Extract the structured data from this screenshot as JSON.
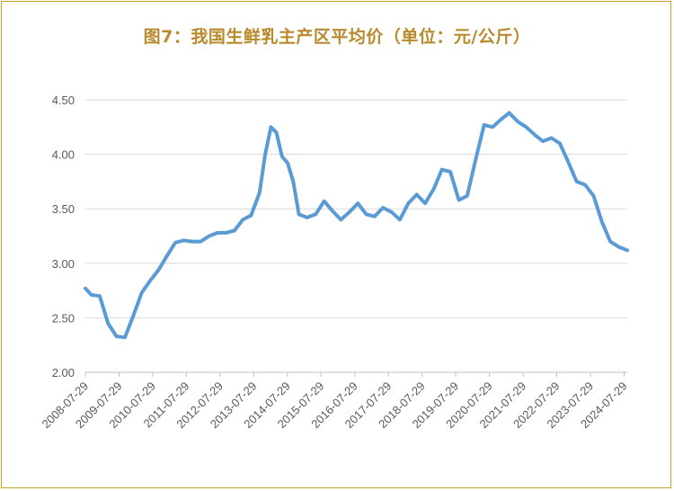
{
  "chart_data": {
    "type": "line",
    "title": "图7：我国生鲜乳主产区平均价（单位：元/公斤）",
    "xlabel": "",
    "ylabel": "",
    "ylim": [
      2.0,
      4.5
    ],
    "yticks": [
      "2.00",
      "2.50",
      "3.00",
      "3.50",
      "4.00",
      "4.50"
    ],
    "xticks": [
      "2008-07-29",
      "2009-07-29",
      "2010-07-29",
      "2011-07-29",
      "2012-07-29",
      "2013-07-29",
      "2014-07-29",
      "2015-07-29",
      "2016-07-29",
      "2017-07-29",
      "2018-07-29",
      "2019-07-29",
      "2020-07-29",
      "2021-07-29",
      "2022-07-29",
      "2023-07-29",
      "2024-07-29"
    ],
    "grid": true,
    "color": "#5b9bd5",
    "series": [
      {
        "x": [
          "2008-07-29",
          "2008-10-01",
          "2009-01-01",
          "2009-04-01",
          "2009-07-01",
          "2009-10-01",
          "2010-01-01",
          "2010-04-01",
          "2010-07-01",
          "2010-10-01",
          "2011-01-01",
          "2011-04-01",
          "2011-07-01",
          "2011-10-01",
          "2012-01-01",
          "2012-04-01",
          "2012-07-01",
          "2012-10-01",
          "2013-01-01",
          "2013-04-01",
          "2013-07-01",
          "2013-10-01",
          "2013-12-01",
          "2014-02-01",
          "2014-04-01",
          "2014-06-01",
          "2014-08-01",
          "2014-10-01",
          "2014-12-01",
          "2015-03-01",
          "2015-06-01",
          "2015-09-01",
          "2015-12-01",
          "2016-03-01",
          "2016-06-01",
          "2016-09-01",
          "2016-12-01",
          "2017-03-01",
          "2017-06-01",
          "2017-09-01",
          "2017-12-01",
          "2018-03-01",
          "2018-06-01",
          "2018-09-01",
          "2018-12-01",
          "2019-03-01",
          "2019-06-01",
          "2019-09-01",
          "2019-12-01",
          "2020-03-01",
          "2020-06-01",
          "2020-09-01",
          "2020-12-01",
          "2021-03-01",
          "2021-06-01",
          "2021-09-01",
          "2021-12-01",
          "2022-03-01",
          "2022-06-01",
          "2022-09-01",
          "2022-12-01",
          "2023-03-01",
          "2023-06-01",
          "2023-09-01",
          "2023-12-01",
          "2024-03-01",
          "2024-06-01",
          "2024-09-01"
        ],
        "values": [
          2.77,
          2.71,
          2.7,
          2.45,
          2.33,
          2.32,
          2.52,
          2.73,
          2.84,
          2.94,
          3.07,
          3.19,
          3.21,
          3.2,
          3.2,
          3.25,
          3.28,
          3.28,
          3.3,
          3.4,
          3.44,
          3.65,
          4.0,
          4.25,
          4.2,
          3.98,
          3.92,
          3.75,
          3.45,
          3.42,
          3.45,
          3.57,
          3.48,
          3.4,
          3.47,
          3.55,
          3.45,
          3.43,
          3.51,
          3.47,
          3.4,
          3.55,
          3.63,
          3.55,
          3.68,
          3.86,
          3.84,
          3.58,
          3.62,
          3.95,
          4.27,
          4.25,
          4.32,
          4.38,
          4.3,
          4.25,
          4.18,
          4.12,
          4.15,
          4.1,
          3.93,
          3.75,
          3.72,
          3.62,
          3.38,
          3.2,
          3.15,
          3.12
        ]
      }
    ]
  }
}
